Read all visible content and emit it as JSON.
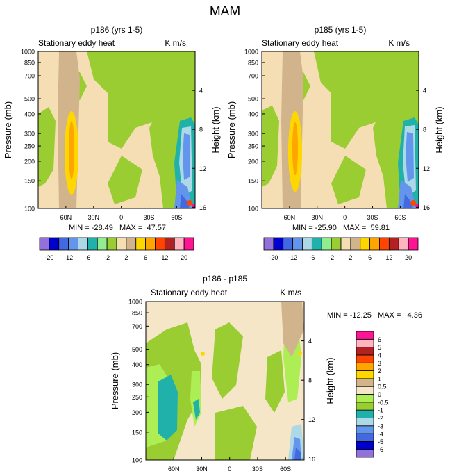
{
  "figure": {
    "title": "MAM"
  },
  "contour_levels": {
    "top": [
      -20,
      -16,
      -12,
      -8,
      -6,
      -4,
      -2,
      -1,
      1,
      2,
      4,
      6,
      8,
      12,
      16,
      20
    ],
    "diff": [
      -6,
      -5,
      -4,
      -3,
      -2,
      -1,
      -0.5,
      0,
      0.5,
      1,
      2,
      3,
      4,
      5,
      6
    ]
  },
  "colors": {
    "top_palette": [
      "#9370DB",
      "#0000CD",
      "#4169E1",
      "#6495ED",
      "#ADD8E6",
      "#20B2AA",
      "#90EE90",
      "#9ACD32",
      "#F5DEB3",
      "#D2B48C",
      "#FFD700",
      "#FFA500",
      "#FF4500",
      "#B22222",
      "#FFB6C1",
      "#FF1493"
    ],
    "diff_palette": [
      "#9370DB",
      "#0000CD",
      "#4169E1",
      "#6495ED",
      "#ADD8E6",
      "#20B2AA",
      "#9ACD32",
      "#ADEE55",
      "#F5E6C8",
      "#D2B48C",
      "#FFD700",
      "#FFA500",
      "#FF4500",
      "#B22222",
      "#FFB6C1",
      "#FF1493"
    ]
  },
  "chart_data": [
    {
      "type": "contour",
      "name": "p186",
      "title": "p186 (yrs 1-5)",
      "left_label": "Stationary eddy heat",
      "right_label": "K m/s",
      "xlabel": "",
      "ylabel": "Pressure (mb)",
      "ylabel_right": "Height (km)",
      "x_tick_labels": [
        "60N",
        "30N",
        "0",
        "30S",
        "60S"
      ],
      "x_tick_values": [
        60,
        30,
        0,
        -30,
        -60
      ],
      "xlim": [
        90,
        -80
      ],
      "y_tick_labels": [
        "100",
        "150",
        "200",
        "250",
        "300",
        "400",
        "500",
        "700",
        "850",
        "1000"
      ],
      "y_tick_values": [
        100,
        150,
        200,
        250,
        300,
        400,
        500,
        700,
        850,
        1000
      ],
      "ylim": [
        1000,
        100
      ],
      "right_tick_labels": [
        "4",
        "8",
        "12",
        "16"
      ],
      "right_tick_values": [
        4,
        8,
        12,
        16
      ],
      "stats": "MIN = -28.49   MAX =  47.57",
      "min": -28.49,
      "max": 47.57
    },
    {
      "type": "contour",
      "name": "p185",
      "title": "p185 (yrs 1-5)",
      "left_label": "Stationary eddy heat",
      "right_label": "K m/s",
      "xlabel": "",
      "ylabel": "Pressure (mb)",
      "ylabel_right": "Height (km)",
      "x_tick_labels": [
        "60N",
        "30N",
        "0",
        "30S",
        "60S"
      ],
      "x_tick_values": [
        60,
        30,
        0,
        -30,
        -60
      ],
      "xlim": [
        90,
        -80
      ],
      "y_tick_labels": [
        "100",
        "150",
        "200",
        "250",
        "300",
        "400",
        "500",
        "700",
        "850",
        "1000"
      ],
      "y_tick_values": [
        100,
        150,
        200,
        250,
        300,
        400,
        500,
        700,
        850,
        1000
      ],
      "ylim": [
        1000,
        100
      ],
      "right_tick_labels": [
        "4",
        "8",
        "12",
        "16"
      ],
      "right_tick_values": [
        4,
        8,
        12,
        16
      ],
      "stats": "MIN = -25.90   MAX =  59.81",
      "min": -25.9,
      "max": 59.81
    },
    {
      "type": "contour",
      "name": "diff",
      "title": "p186 - p185",
      "left_label": "Stationary eddy heat",
      "right_label": "K m/s",
      "xlabel": "",
      "ylabel": "Pressure (mb)",
      "ylabel_right": "Height (km)",
      "x_tick_labels": [
        "60N",
        "30N",
        "0",
        "30S",
        "60S"
      ],
      "x_tick_values": [
        60,
        30,
        0,
        -30,
        -60
      ],
      "xlim": [
        90,
        -80
      ],
      "y_tick_labels": [
        "100",
        "150",
        "200",
        "250",
        "300",
        "400",
        "500",
        "700",
        "850",
        "1000"
      ],
      "y_tick_values": [
        100,
        150,
        200,
        250,
        300,
        400,
        500,
        700,
        850,
        1000
      ],
      "ylim": [
        1000,
        100
      ],
      "right_tick_labels": [
        "4",
        "8",
        "12",
        "16"
      ],
      "right_tick_values": [
        4,
        8,
        12,
        16
      ],
      "stats": "MIN = -12.25   MAX =   4.36",
      "min": -12.25,
      "max": 4.36
    }
  ],
  "colorbars": {
    "top": {
      "labels": [
        "-20",
        "-12",
        "-6",
        "-2",
        "2",
        "6",
        "12",
        "20"
      ]
    },
    "diff": {
      "labels": [
        "6",
        "5",
        "4",
        "3",
        "2",
        "1",
        "0.5",
        "0",
        "-0.5",
        "-1",
        "-2",
        "-3",
        "-4",
        "-5",
        "-6"
      ]
    }
  }
}
